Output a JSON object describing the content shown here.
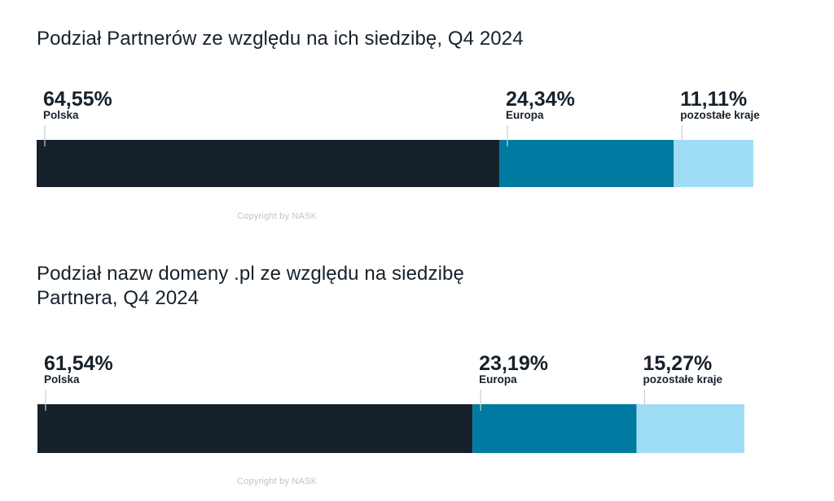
{
  "chart_data": [
    {
      "type": "bar",
      "orientation": "horizontal-stacked",
      "title": "Podział Partnerów ze względu na ich siedzibę, Q4 2024",
      "categories": [
        "Polska",
        "Europa",
        "pozostałe kraje"
      ],
      "values": [
        64.55,
        24.34,
        11.11
      ],
      "value_labels": [
        "64,55%",
        "24,34%",
        "11,11%"
      ],
      "colors": [
        "#16212b",
        "#007aa0",
        "#9fdcf5"
      ],
      "copyright": "Copyright by NASK"
    },
    {
      "type": "bar",
      "orientation": "horizontal-stacked",
      "title": "Podział nazw domeny .pl ze względu na siedzibę Partnera, Q4 2024",
      "title_lines": [
        "Podział nazw domeny .pl ze względu na siedzibę",
        "Partnera, Q4 2024"
      ],
      "categories": [
        "Polska",
        "Europa",
        "pozostałe kraje"
      ],
      "values": [
        61.54,
        23.19,
        15.27
      ],
      "value_labels": [
        "61,54%",
        "23,19%",
        "15,27%"
      ],
      "colors": [
        "#16212b",
        "#007aa0",
        "#9fdcf5"
      ],
      "copyright": "Copyright by NASK"
    }
  ]
}
